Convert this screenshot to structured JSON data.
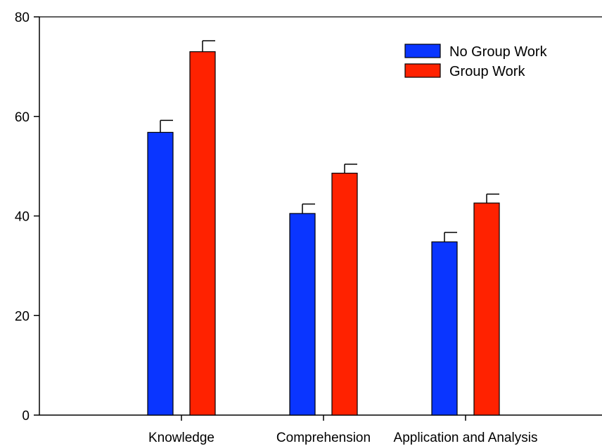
{
  "chart_data": {
    "type": "bar",
    "title": "",
    "xlabel": "",
    "ylabel": "",
    "ylim": [
      0,
      80
    ],
    "yticks": [
      0,
      20,
      40,
      60,
      80
    ],
    "grid": false,
    "legend_position": "top-right",
    "categories": [
      "Knowledge",
      "Comprehension",
      "Application and Analysis"
    ],
    "series": [
      {
        "name": "No Group Work",
        "color": "#0a35ff",
        "values": [
          56.8,
          40.5,
          34.8
        ],
        "error": [
          2.4,
          1.9,
          1.9
        ]
      },
      {
        "name": "Group Work",
        "color": "#ff2200",
        "values": [
          73.0,
          48.6,
          42.6
        ],
        "error": [
          2.2,
          1.8,
          1.8
        ]
      }
    ]
  }
}
